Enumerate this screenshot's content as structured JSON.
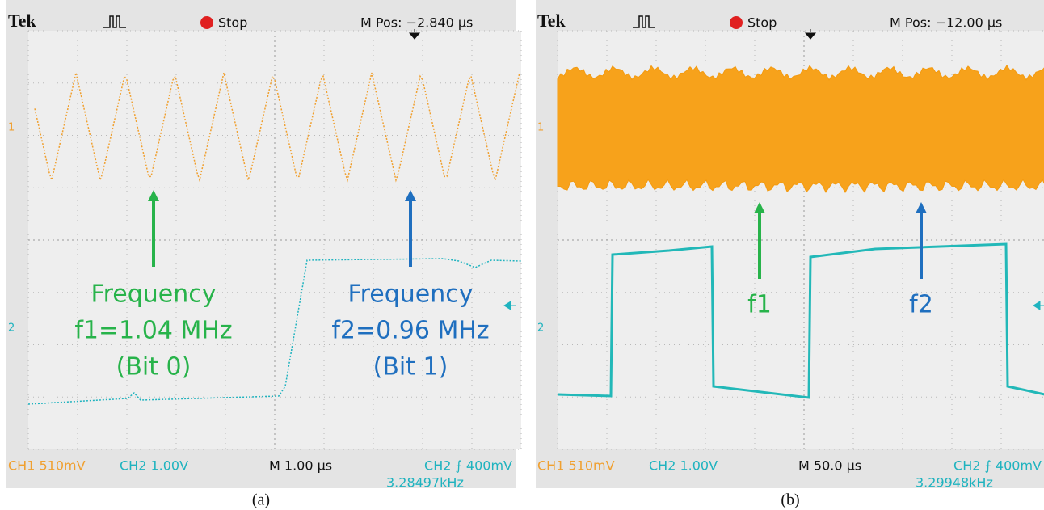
{
  "panels": [
    {
      "caption": "(a)",
      "header": {
        "brand": "Tek",
        "status": "Stop",
        "position": "M Pos: −2.840 µs"
      },
      "channel_markers": [
        "1",
        "2"
      ],
      "footer": {
        "ch1": "CH1  510mV",
        "ch2": "CH2  1.00V",
        "timebase": "M 1.00 µs",
        "trigger": "CH2 ⨍ 400mV",
        "frequency": "3.28497kHz"
      },
      "annotations": [
        {
          "lines": [
            "Frequency",
            "f1=1.04 MHz",
            "(Bit 0)"
          ]
        },
        {
          "lines": [
            "Frequency",
            "f2=0.96 MHz",
            "(Bit 1)"
          ]
        }
      ]
    },
    {
      "caption": "(b)",
      "header": {
        "brand": "Tek",
        "status": "Stop",
        "position": "M Pos: −12.00 µs"
      },
      "channel_markers": [
        "1",
        "2"
      ],
      "footer": {
        "ch1": "CH1  510mV",
        "ch2": "CH2  1.00V",
        "timebase": "M 50.0 µs",
        "trigger": "CH2 ⨍ 400mV",
        "frequency": "3.29948kHz"
      },
      "annotations": [
        {
          "lines": [
            "f1"
          ]
        },
        {
          "lines": [
            "f2"
          ]
        }
      ]
    }
  ]
}
